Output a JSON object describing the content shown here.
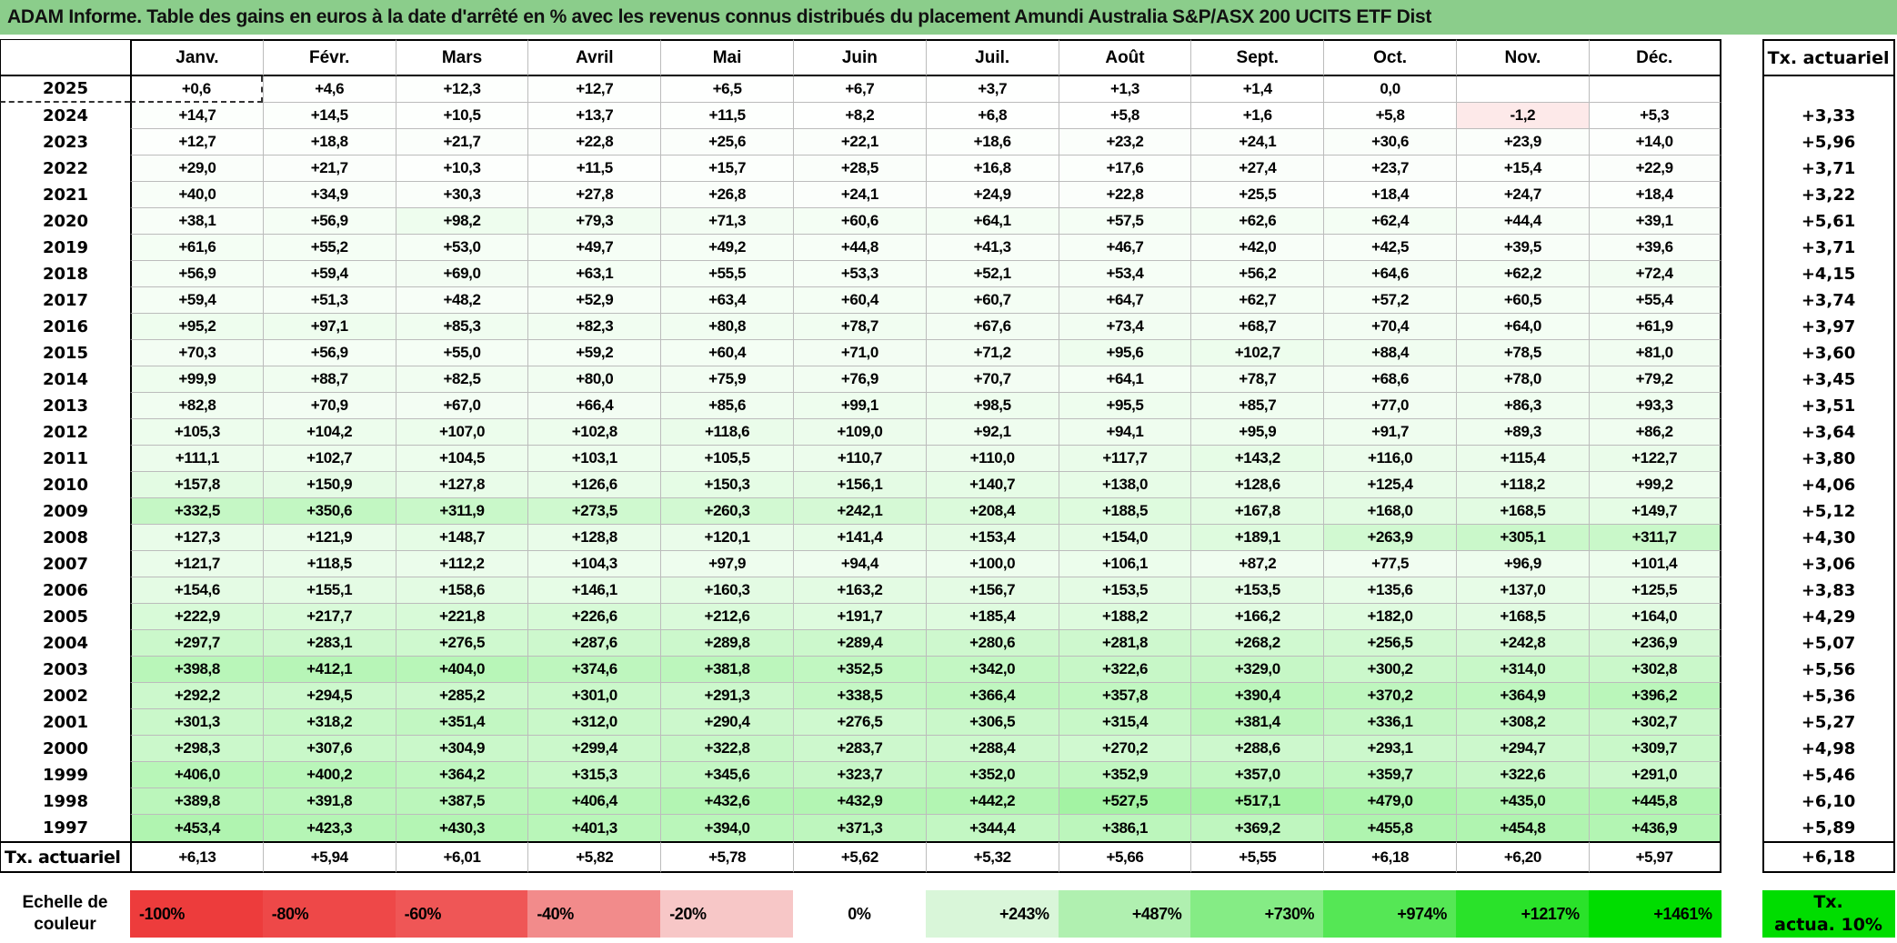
{
  "title": "ADAM Informe. Table des gains en euros à la date d'arrêté en % avec les revenus connus distribués du placement Amundi Australia S&P/ASX 200 UCITS ETF Dist",
  "months": [
    "Janv.",
    "Févr.",
    "Mars",
    "Avril",
    "Mai",
    "Juin",
    "Juil.",
    "Août",
    "Sept.",
    "Oct.",
    "Nov.",
    "Déc."
  ],
  "right_col_header": "Tx. actuariel",
  "bottom_row_label": "Tx. actuariel",
  "selection": {
    "year": "2025",
    "month_index": 0
  },
  "rows": [
    {
      "year": "2025",
      "cells": [
        "+0,6",
        "+4,6",
        "+12,3",
        "+12,7",
        "+6,5",
        "+6,7",
        "+3,7",
        "+1,3",
        "+1,4",
        "0,0",
        "",
        ""
      ],
      "tx": ""
    },
    {
      "year": "2024",
      "cells": [
        "+14,7",
        "+14,5",
        "+10,5",
        "+13,7",
        "+11,5",
        "+8,2",
        "+6,8",
        "+5,8",
        "+1,6",
        "+5,8",
        "-1,2",
        "+5,3"
      ],
      "tx": "+3,33"
    },
    {
      "year": "2023",
      "cells": [
        "+12,7",
        "+18,8",
        "+21,7",
        "+22,8",
        "+25,6",
        "+22,1",
        "+18,6",
        "+23,2",
        "+24,1",
        "+30,6",
        "+23,9",
        "+14,0"
      ],
      "tx": "+5,96"
    },
    {
      "year": "2022",
      "cells": [
        "+29,0",
        "+21,7",
        "+10,3",
        "+11,5",
        "+15,7",
        "+28,5",
        "+16,8",
        "+17,6",
        "+27,4",
        "+23,7",
        "+15,4",
        "+22,9"
      ],
      "tx": "+3,71"
    },
    {
      "year": "2021",
      "cells": [
        "+40,0",
        "+34,9",
        "+30,3",
        "+27,8",
        "+26,8",
        "+24,1",
        "+24,9",
        "+22,8",
        "+25,5",
        "+18,4",
        "+24,7",
        "+18,4"
      ],
      "tx": "+3,22"
    },
    {
      "year": "2020",
      "cells": [
        "+38,1",
        "+56,9",
        "+98,2",
        "+79,3",
        "+71,3",
        "+60,6",
        "+64,1",
        "+57,5",
        "+62,6",
        "+62,4",
        "+44,4",
        "+39,1"
      ],
      "tx": "+5,61"
    },
    {
      "year": "2019",
      "cells": [
        "+61,6",
        "+55,2",
        "+53,0",
        "+49,7",
        "+49,2",
        "+44,8",
        "+41,3",
        "+46,7",
        "+42,0",
        "+42,5",
        "+39,5",
        "+39,6"
      ],
      "tx": "+3,71"
    },
    {
      "year": "2018",
      "cells": [
        "+56,9",
        "+59,4",
        "+69,0",
        "+63,1",
        "+55,5",
        "+53,3",
        "+52,1",
        "+53,4",
        "+56,2",
        "+64,6",
        "+62,2",
        "+72,4"
      ],
      "tx": "+4,15"
    },
    {
      "year": "2017",
      "cells": [
        "+59,4",
        "+51,3",
        "+48,2",
        "+52,9",
        "+63,4",
        "+60,4",
        "+60,7",
        "+64,7",
        "+62,7",
        "+57,2",
        "+60,5",
        "+55,4"
      ],
      "tx": "+3,74"
    },
    {
      "year": "2016",
      "cells": [
        "+95,2",
        "+97,1",
        "+85,3",
        "+82,3",
        "+80,8",
        "+78,7",
        "+67,6",
        "+73,4",
        "+68,7",
        "+70,4",
        "+64,0",
        "+61,9"
      ],
      "tx": "+3,97"
    },
    {
      "year": "2015",
      "cells": [
        "+70,3",
        "+56,9",
        "+55,0",
        "+59,2",
        "+60,4",
        "+71,0",
        "+71,2",
        "+95,6",
        "+102,7",
        "+88,4",
        "+78,5",
        "+81,0"
      ],
      "tx": "+3,60"
    },
    {
      "year": "2014",
      "cells": [
        "+99,9",
        "+88,7",
        "+82,5",
        "+80,0",
        "+75,9",
        "+76,9",
        "+70,7",
        "+64,1",
        "+78,7",
        "+68,6",
        "+78,0",
        "+79,2"
      ],
      "tx": "+3,45"
    },
    {
      "year": "2013",
      "cells": [
        "+82,8",
        "+70,9",
        "+67,0",
        "+66,4",
        "+85,6",
        "+99,1",
        "+98,5",
        "+95,5",
        "+85,7",
        "+77,0",
        "+86,3",
        "+93,3"
      ],
      "tx": "+3,51"
    },
    {
      "year": "2012",
      "cells": [
        "+105,3",
        "+104,2",
        "+107,0",
        "+102,8",
        "+118,6",
        "+109,0",
        "+92,1",
        "+94,1",
        "+95,9",
        "+91,7",
        "+89,3",
        "+86,2"
      ],
      "tx": "+3,64"
    },
    {
      "year": "2011",
      "cells": [
        "+111,1",
        "+102,7",
        "+104,5",
        "+103,1",
        "+105,5",
        "+110,7",
        "+110,0",
        "+117,7",
        "+143,2",
        "+116,0",
        "+115,4",
        "+122,7"
      ],
      "tx": "+3,80"
    },
    {
      "year": "2010",
      "cells": [
        "+157,8",
        "+150,9",
        "+127,8",
        "+126,6",
        "+150,3",
        "+156,1",
        "+140,7",
        "+138,0",
        "+128,6",
        "+125,4",
        "+118,2",
        "+99,2"
      ],
      "tx": "+4,06"
    },
    {
      "year": "2009",
      "cells": [
        "+332,5",
        "+350,6",
        "+311,9",
        "+273,5",
        "+260,3",
        "+242,1",
        "+208,4",
        "+188,5",
        "+167,8",
        "+168,0",
        "+168,5",
        "+149,7"
      ],
      "tx": "+5,12"
    },
    {
      "year": "2008",
      "cells": [
        "+127,3",
        "+121,9",
        "+148,7",
        "+128,8",
        "+120,1",
        "+141,4",
        "+153,4",
        "+154,0",
        "+189,1",
        "+263,9",
        "+305,1",
        "+311,7"
      ],
      "tx": "+4,30"
    },
    {
      "year": "2007",
      "cells": [
        "+121,7",
        "+118,5",
        "+112,2",
        "+104,3",
        "+97,9",
        "+94,4",
        "+100,0",
        "+106,1",
        "+87,2",
        "+77,5",
        "+96,9",
        "+101,4"
      ],
      "tx": "+3,06"
    },
    {
      "year": "2006",
      "cells": [
        "+154,6",
        "+155,1",
        "+158,6",
        "+146,1",
        "+160,3",
        "+163,2",
        "+156,7",
        "+153,5",
        "+153,5",
        "+135,6",
        "+137,0",
        "+125,5"
      ],
      "tx": "+3,83"
    },
    {
      "year": "2005",
      "cells": [
        "+222,9",
        "+217,7",
        "+221,8",
        "+226,6",
        "+212,6",
        "+191,7",
        "+185,4",
        "+188,2",
        "+166,2",
        "+182,0",
        "+168,5",
        "+164,0"
      ],
      "tx": "+4,29"
    },
    {
      "year": "2004",
      "cells": [
        "+297,7",
        "+283,1",
        "+276,5",
        "+287,6",
        "+289,8",
        "+289,4",
        "+280,6",
        "+281,8",
        "+268,2",
        "+256,5",
        "+242,8",
        "+236,9"
      ],
      "tx": "+5,07"
    },
    {
      "year": "2003",
      "cells": [
        "+398,8",
        "+412,1",
        "+404,0",
        "+374,6",
        "+381,8",
        "+352,5",
        "+342,0",
        "+322,6",
        "+329,0",
        "+300,2",
        "+314,0",
        "+302,8"
      ],
      "tx": "+5,56"
    },
    {
      "year": "2002",
      "cells": [
        "+292,2",
        "+294,5",
        "+285,2",
        "+301,0",
        "+291,3",
        "+338,5",
        "+366,4",
        "+357,8",
        "+390,4",
        "+370,2",
        "+364,9",
        "+396,2"
      ],
      "tx": "+5,36"
    },
    {
      "year": "2001",
      "cells": [
        "+301,3",
        "+318,2",
        "+351,4",
        "+312,0",
        "+290,4",
        "+276,5",
        "+306,5",
        "+315,4",
        "+381,4",
        "+336,1",
        "+308,2",
        "+302,7"
      ],
      "tx": "+5,27"
    },
    {
      "year": "2000",
      "cells": [
        "+298,3",
        "+307,6",
        "+304,9",
        "+299,4",
        "+322,8",
        "+283,7",
        "+288,4",
        "+270,2",
        "+288,6",
        "+293,1",
        "+294,7",
        "+309,7"
      ],
      "tx": "+4,98"
    },
    {
      "year": "1999",
      "cells": [
        "+406,0",
        "+400,2",
        "+364,2",
        "+315,3",
        "+345,6",
        "+323,7",
        "+352,0",
        "+352,9",
        "+357,0",
        "+359,7",
        "+322,6",
        "+291,0"
      ],
      "tx": "+5,46"
    },
    {
      "year": "1998",
      "cells": [
        "+389,8",
        "+391,8",
        "+387,5",
        "+406,4",
        "+432,6",
        "+432,9",
        "+442,2",
        "+527,5",
        "+517,1",
        "+479,0",
        "+435,0",
        "+445,8"
      ],
      "tx": "+6,10"
    },
    {
      "year": "1997",
      "cells": [
        "+453,4",
        "+423,3",
        "+430,3",
        "+401,3",
        "+394,0",
        "+371,3",
        "+344,4",
        "+386,1",
        "+369,2",
        "+455,8",
        "+454,8",
        "+436,9"
      ],
      "tx": "+5,89"
    }
  ],
  "bottom_row": {
    "cells": [
      "+6,13",
      "+5,94",
      "+6,01",
      "+5,82",
      "+5,78",
      "+5,62",
      "+5,32",
      "+5,66",
      "+5,55",
      "+6,18",
      "+6,20",
      "+5,97"
    ],
    "tx": "+6,18"
  },
  "legend": {
    "label_line1": "Echelle de",
    "label_line2": "couleur",
    "items": [
      {
        "label": "-100%",
        "color": "#ed3c3c",
        "align": "left"
      },
      {
        "label": "-80%",
        "color": "#ee4848",
        "align": "left"
      },
      {
        "label": "-60%",
        "color": "#ef5656",
        "align": "left"
      },
      {
        "label": "-40%",
        "color": "#f28b8b",
        "align": "left"
      },
      {
        "label": "-20%",
        "color": "#f7c7c7",
        "align": "left"
      },
      {
        "label": "0%",
        "color": "#ffffff",
        "align": "center"
      },
      {
        "label": "+243%",
        "color": "#d9f6d9",
        "align": "right"
      },
      {
        "label": "+487%",
        "color": "#b0f0b0",
        "align": "right"
      },
      {
        "label": "+730%",
        "color": "#85ec85",
        "align": "right"
      },
      {
        "label": "+974%",
        "color": "#55e755",
        "align": "right"
      },
      {
        "label": "+1217%",
        "color": "#2ae22a",
        "align": "right"
      },
      {
        "label": "+1461%",
        "color": "#00dd00",
        "align": "right"
      }
    ],
    "right_box_line1": "Tx.",
    "right_box_line2": "actua. 10%",
    "right_box_color": "#00dd00"
  },
  "colors": {
    "title_bg": "#8bcd8b",
    "grid_line": "#bcbcbc",
    "scale_max_value": 1461,
    "scale_max_color": "#00dd00",
    "scale_min_value": -100,
    "scale_min_color": "#ee3a3a"
  }
}
